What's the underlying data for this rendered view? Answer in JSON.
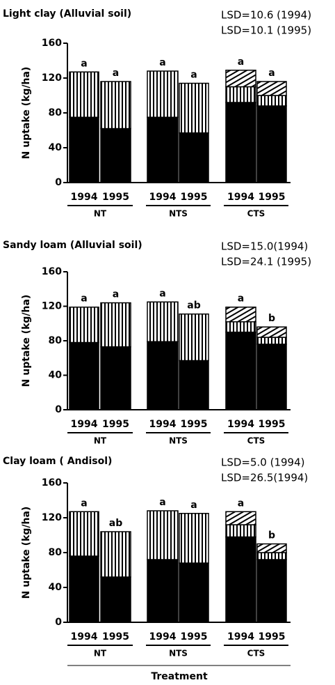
{
  "chart_data": [
    {
      "type": "bar",
      "title": "Light clay  (Alluvial soil)",
      "annotations": [
        "LSD=10.6 (1994)",
        "LSD=10.1 (1995)"
      ],
      "ylabel": "N uptake (kg/ha)",
      "categories": [
        "1994",
        "1995",
        "1994",
        "1995",
        "1994",
        "1995"
      ],
      "groups": [
        "NT",
        "NTS",
        "CTS"
      ],
      "series": [
        {
          "color": "#000000",
          "values": [
            75,
            62,
            75,
            57,
            92,
            88
          ]
        },
        {
          "color": "url(#vstripe)",
          "values": [
            52,
            54,
            53,
            57,
            18,
            12
          ]
        },
        {
          "color": "url(#hatch)",
          "values": [
            null,
            null,
            null,
            null,
            19,
            16
          ]
        }
      ],
      "letters": [
        "a",
        "a",
        "a",
        "a",
        "a",
        "a"
      ],
      "ylim": [
        0,
        160
      ],
      "yticks": [
        0,
        40,
        80,
        120,
        160
      ]
    },
    {
      "type": "bar",
      "title": "Sandy loam  (Alluvial soil)",
      "annotations": [
        "LSD=15.0(1994)",
        "LSD=24.1 (1995)"
      ],
      "ylabel": "N uptake (kg/ha)",
      "categories": [
        "1994",
        "1995",
        "1994",
        "1995",
        "1994",
        "1995"
      ],
      "groups": [
        "NT",
        "NTS",
        "CTS"
      ],
      "series": [
        {
          "color": "#000000",
          "values": [
            78,
            73,
            79,
            57,
            90,
            76
          ]
        },
        {
          "color": "url(#vstripe)",
          "values": [
            41,
            51,
            46,
            54,
            12,
            8
          ]
        },
        {
          "color": "url(#hatch)",
          "values": [
            null,
            null,
            null,
            null,
            17,
            12
          ]
        }
      ],
      "letters": [
        "a",
        "a",
        "a",
        "ab",
        "a",
        "b"
      ],
      "ylim": [
        0,
        160
      ],
      "yticks": [
        0,
        40,
        80,
        120,
        160
      ]
    },
    {
      "type": "bar",
      "title": "Clay loam  ( Andisol)",
      "annotations": [
        "LSD=5.0 (1994)",
        "LSD=26.5(1994)"
      ],
      "ylabel": "N uptake (kg/ha)",
      "categories": [
        "1994",
        "1995",
        "1994",
        "1995",
        "1994",
        "1995"
      ],
      "groups": [
        "NT",
        "NTS",
        "CTS"
      ],
      "series": [
        {
          "color": "#000000",
          "values": [
            76,
            52,
            72,
            68,
            98,
            72
          ]
        },
        {
          "color": "url(#vstripe)",
          "values": [
            51,
            52,
            56,
            57,
            14,
            8
          ]
        },
        {
          "color": "url(#hatch)",
          "values": [
            null,
            null,
            null,
            null,
            15,
            10
          ]
        }
      ],
      "letters": [
        "a",
        "ab",
        "a",
        "a",
        "a",
        "b"
      ],
      "ylim": [
        0,
        160
      ],
      "yticks": [
        0,
        40,
        80,
        120,
        160
      ],
      "xlabel": "Treatment"
    }
  ]
}
